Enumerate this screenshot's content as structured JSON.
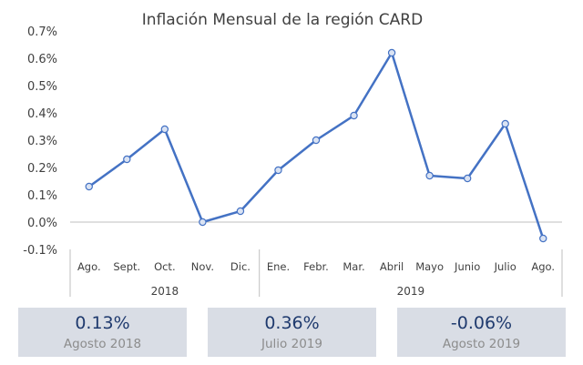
{
  "chart_data": {
    "type": "line",
    "title": "Inflación Mensual de la región CARD",
    "categories": [
      "Ago.",
      "Sept.",
      "Oct.",
      "Nov.",
      "Dic.",
      "Ene.",
      "Febr.",
      "Mar.",
      "Abril",
      "Mayo",
      "Junio",
      "Julio",
      "Ago."
    ],
    "groups": [
      {
        "label": "2018",
        "count": 5
      },
      {
        "label": "2019",
        "count": 8
      }
    ],
    "values": [
      0.13,
      0.23,
      0.34,
      0.0,
      0.04,
      0.19,
      0.3,
      0.39,
      0.62,
      0.17,
      0.16,
      0.36,
      -0.06
    ],
    "ylim": [
      -0.1,
      0.7
    ],
    "yticks": [
      "0.7%",
      "0.6%",
      "0.5%",
      "0.4%",
      "0.3%",
      "0.2%",
      "0.1%",
      "0.0%",
      "-0.1%"
    ],
    "line_color": "#4472c4",
    "marker_fill": "#dae3f3",
    "grid": false,
    "legend": "none"
  },
  "kpis": [
    {
      "value": "0.13%",
      "label": "Agosto 2018"
    },
    {
      "value": "0.36%",
      "label": "Julio 2019"
    },
    {
      "value": "-0.06%",
      "label": "Agosto 2019"
    }
  ]
}
